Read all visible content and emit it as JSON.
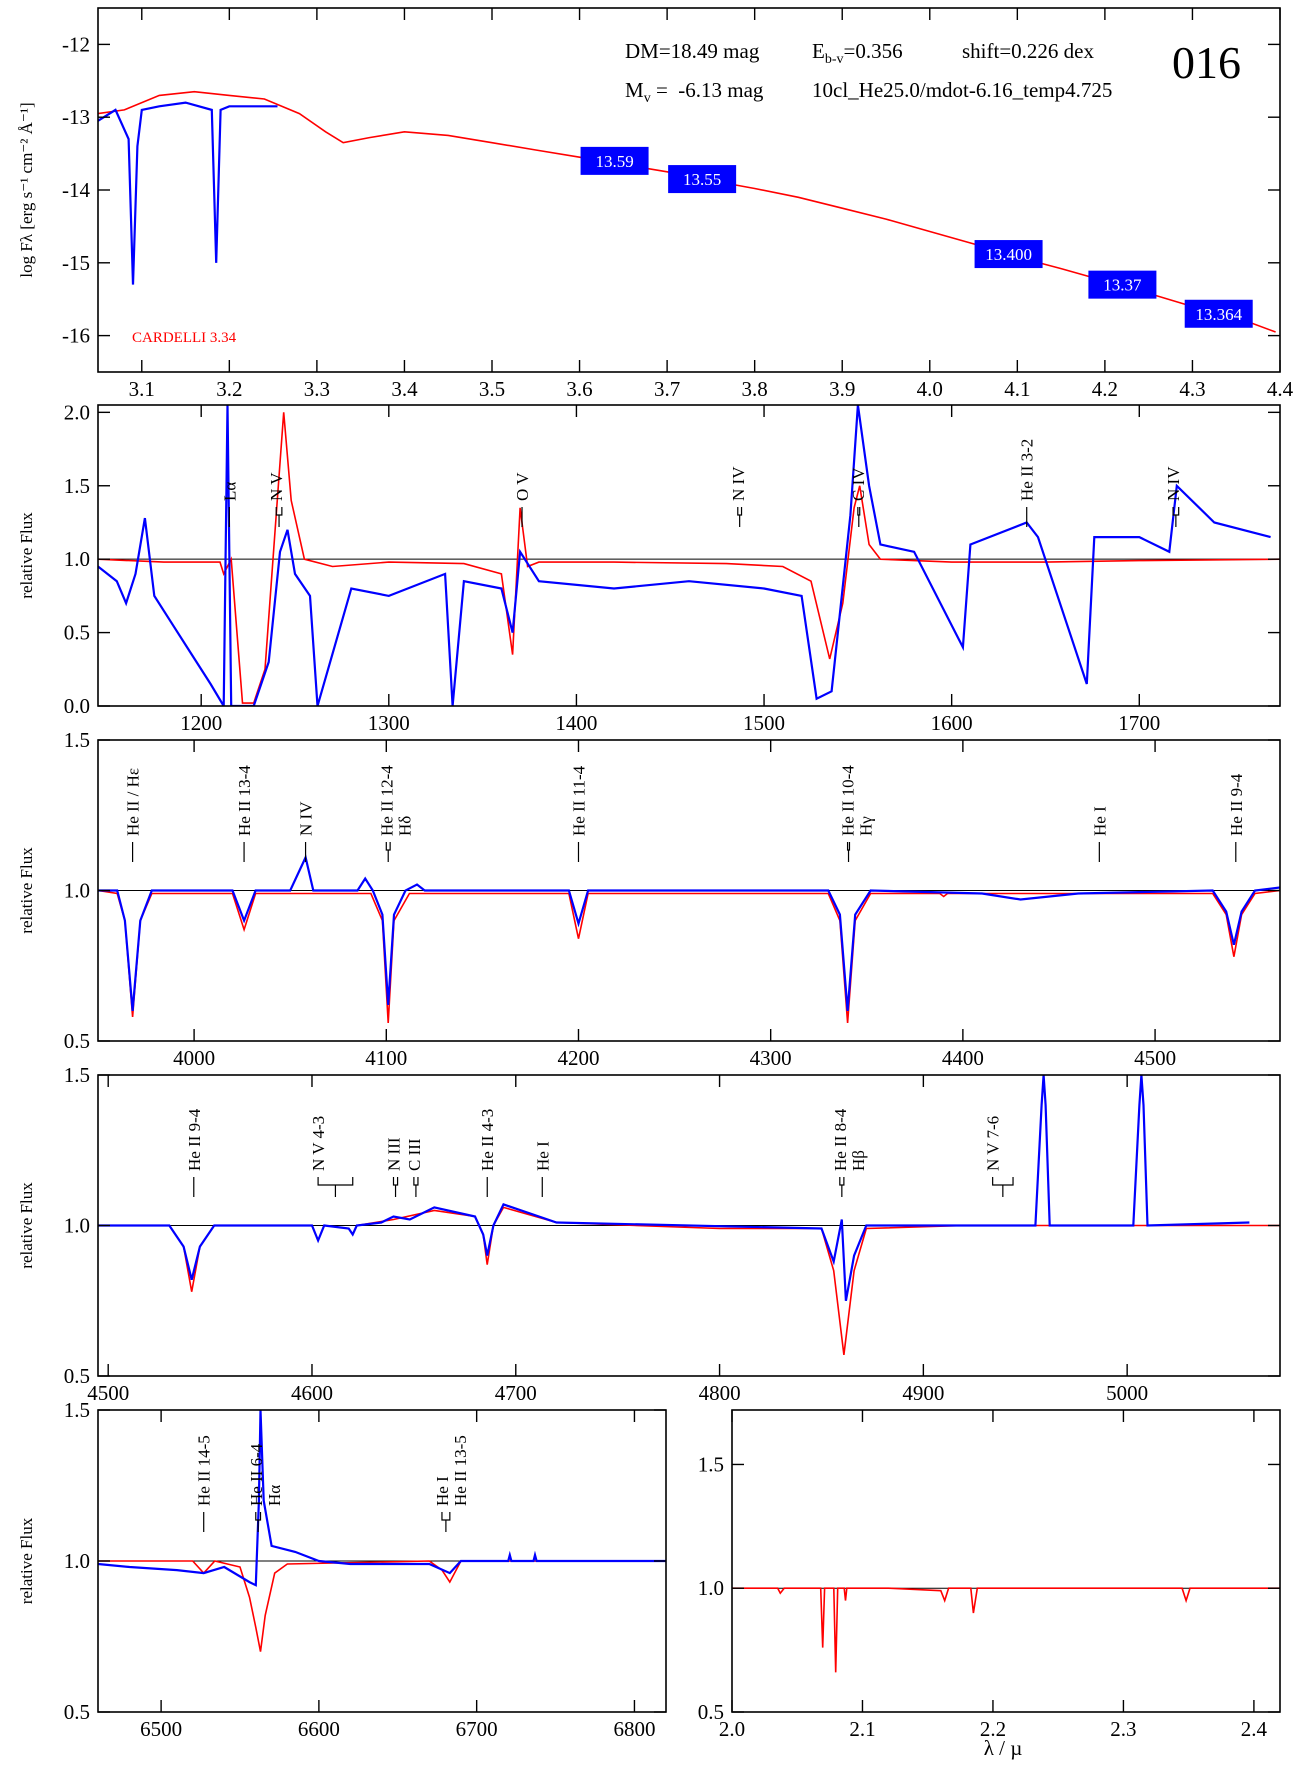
{
  "header": {
    "dm": "DM=18.49 mag",
    "ebv_prefix": "E",
    "ebv_sub": "b-v",
    "ebv_value": "=0.356",
    "shift": "shift=0.226 dex",
    "mv_prefix": "M",
    "mv_sub": "v",
    "mv_value": " =  -6.13 mag",
    "model": "10cl_He25.0/mdot-6.16_temp4.725",
    "star_id": "016"
  },
  "xlabel": "λ / µ",
  "colors": {
    "observation": "#0000ff",
    "model": "#ff0000",
    "photometry_box": "#0000ff",
    "reference_line": "#000000"
  },
  "chart_data": [
    {
      "name": "sed",
      "type": "line",
      "ylabel": "log Fλ [erg s⁻¹ cm⁻² Å⁻¹]",
      "xlim": [
        3.05,
        4.4
      ],
      "ylim": [
        -16.5,
        -11.5
      ],
      "xticks": [
        3.1,
        3.2,
        3.3,
        3.4,
        3.5,
        3.6,
        3.7,
        3.8,
        3.9,
        4.0,
        4.1,
        4.2,
        4.3,
        4.4
      ],
      "xtick_labels": [
        "3.1",
        "3.2",
        "3.3",
        "3.4",
        "3.5",
        "3.6",
        "3.7",
        "3.8",
        "3.9",
        "4.0",
        "4.1",
        "4.2",
        "4.3",
        "4.4"
      ],
      "yticks": [
        -16,
        -15,
        -14,
        -13,
        -12
      ],
      "ytick_labels": [
        "-16",
        "-15",
        "-14",
        "-13",
        "-12"
      ],
      "extinction_label": "CARDELLI 3.34",
      "photometry": [
        {
          "x": 3.64,
          "y": -13.6,
          "label": "13.59"
        },
        {
          "x": 3.74,
          "y": -13.85,
          "label": "13.55"
        },
        {
          "x": 4.09,
          "y": -14.88,
          "label": "13.400"
        },
        {
          "x": 4.22,
          "y": -15.3,
          "label": "13.37"
        },
        {
          "x": 4.33,
          "y": -15.7,
          "label": "13.364"
        }
      ],
      "model": {
        "x": [
          3.05,
          3.08,
          3.12,
          3.16,
          3.2,
          3.24,
          3.28,
          3.31,
          3.33,
          3.36,
          3.4,
          3.45,
          3.5,
          3.55,
          3.6,
          3.65,
          3.7,
          3.75,
          3.8,
          3.85,
          3.9,
          3.95,
          4.0,
          4.05,
          4.1,
          4.15,
          4.2,
          4.25,
          4.3,
          4.35,
          4.395
        ],
        "y": [
          -12.95,
          -12.9,
          -12.7,
          -12.65,
          -12.7,
          -12.75,
          -12.95,
          -13.2,
          -13.35,
          -13.28,
          -13.2,
          -13.25,
          -13.35,
          -13.45,
          -13.55,
          -13.65,
          -13.75,
          -13.87,
          -13.98,
          -14.1,
          -14.25,
          -14.4,
          -14.57,
          -14.74,
          -14.92,
          -15.08,
          -15.25,
          -15.42,
          -15.6,
          -15.75,
          -15.95
        ]
      },
      "observation": {
        "x": [
          3.05,
          3.07,
          3.085,
          3.09,
          3.095,
          3.1,
          3.12,
          3.15,
          3.18,
          3.185,
          3.19,
          3.2,
          3.23,
          3.255
        ],
        "y": [
          -13.05,
          -12.9,
          -13.3,
          -15.3,
          -13.4,
          -12.9,
          -12.85,
          -12.8,
          -12.9,
          -15.0,
          -12.9,
          -12.85,
          -12.85,
          -12.85
        ]
      }
    },
    {
      "name": "uv",
      "type": "line",
      "ylabel": "relative Flux",
      "xlim": [
        1145,
        1775
      ],
      "ylim": [
        0.0,
        2.05
      ],
      "xticks": [
        1200,
        1300,
        1400,
        1500,
        1600,
        1700
      ],
      "xtick_labels": [
        "1200",
        "1300",
        "1400",
        "1500",
        "1600",
        "1700"
      ],
      "yticks": [
        0.0,
        0.5,
        1.0,
        1.5,
        2.0
      ],
      "ytick_labels": [
        "0.0",
        "0.5",
        "1.0",
        "1.5",
        "2.0"
      ],
      "line_ids": [
        {
          "x": 1215,
          "label": "Lα",
          "double": false
        },
        {
          "x": 1240,
          "label": "N V",
          "double": true,
          "x2": 1243
        },
        {
          "x": 1371,
          "label": "O V",
          "double": false
        },
        {
          "x": 1486,
          "label": "N IV",
          "double": true,
          "x2": 1488
        },
        {
          "x": 1550,
          "label": "C IV",
          "double": true,
          "x2": 1551
        },
        {
          "x": 1640,
          "label": "He II 3-2",
          "double": false
        },
        {
          "x": 1718,
          "label": "N IV",
          "double": true,
          "x2": 1721
        }
      ],
      "model": {
        "x": [
          1145,
          1180,
          1210,
          1212,
          1216,
          1222,
          1228,
          1234,
          1240,
          1244,
          1248,
          1255,
          1270,
          1300,
          1340,
          1360,
          1366,
          1370,
          1374,
          1380,
          1420,
          1480,
          1510,
          1525,
          1535,
          1542,
          1548,
          1551,
          1556,
          1562,
          1600,
          1650,
          1700,
          1775
        ],
        "y": [
          1.0,
          0.98,
          0.98,
          0.9,
          1.0,
          0.02,
          0.02,
          0.25,
          1.3,
          2.0,
          1.4,
          1.0,
          0.95,
          0.98,
          0.97,
          0.9,
          0.35,
          1.35,
          0.95,
          0.98,
          0.98,
          0.97,
          0.95,
          0.85,
          0.32,
          0.7,
          1.35,
          1.5,
          1.1,
          1.0,
          0.98,
          0.98,
          0.99,
          1.0
        ]
      },
      "observation": {
        "x": [
          1145,
          1155,
          1160,
          1165,
          1170,
          1175,
          1185,
          1195,
          1205,
          1212,
          1214,
          1216,
          1218,
          1228,
          1236,
          1242,
          1246,
          1250,
          1258,
          1262,
          1280,
          1300,
          1330,
          1334,
          1340,
          1360,
          1366,
          1370,
          1380,
          1420,
          1460,
          1500,
          1520,
          1528,
          1536,
          1546,
          1550,
          1556,
          1562,
          1580,
          1606,
          1610,
          1640,
          1646,
          1672,
          1676,
          1700,
          1716,
          1720,
          1740,
          1770
        ],
        "y": [
          0.95,
          0.85,
          0.7,
          0.9,
          1.28,
          0.75,
          0.55,
          0.35,
          0.15,
          0.0,
          2.05,
          0.0,
          0.0,
          0.0,
          0.3,
          1.05,
          1.2,
          0.9,
          0.75,
          0.0,
          0.8,
          0.75,
          0.9,
          0.0,
          0.85,
          0.8,
          0.5,
          1.05,
          0.85,
          0.8,
          0.85,
          0.8,
          0.75,
          0.05,
          0.1,
          1.3,
          2.05,
          1.5,
          1.1,
          1.05,
          0.4,
          1.1,
          1.25,
          1.15,
          0.15,
          1.15,
          1.15,
          1.05,
          1.5,
          1.25,
          1.15
        ]
      }
    },
    {
      "name": "optical-blue",
      "type": "line",
      "ylabel": "relative Flux",
      "xlim": [
        3950,
        4565
      ],
      "ylim": [
        0.5,
        1.5
      ],
      "xticks": [
        4000,
        4100,
        4200,
        4300,
        4400,
        4500
      ],
      "xtick_labels": [
        "4000",
        "4100",
        "4200",
        "4300",
        "4400",
        "4500"
      ],
      "yticks": [
        0.5,
        1.0,
        1.5
      ],
      "ytick_labels": [
        "0.5",
        "1.0",
        "1.5"
      ],
      "line_ids": [
        {
          "x": 3968,
          "label": "He II / Hε",
          "double": false
        },
        {
          "x": 4026,
          "label": "He II 13-4",
          "double": false
        },
        {
          "x": 4058,
          "label": "N IV",
          "double": false
        },
        {
          "x": 4100,
          "label": "He II 12-4",
          "double": true,
          "x2": 4102,
          "label2": "Hδ"
        },
        {
          "x": 4200,
          "label": "He II 11-4",
          "double": false
        },
        {
          "x": 4340,
          "label": "He II 10-4",
          "double": true,
          "x2": 4341,
          "label2": "Hγ"
        },
        {
          "x": 4471,
          "label": "He I",
          "double": false
        },
        {
          "x": 4542,
          "label": "He II 9-4",
          "double": false
        }
      ],
      "model": {
        "x": [
          3950,
          3960,
          3964,
          3968,
          3972,
          3978,
          4020,
          4026,
          4032,
          4092,
          4098,
          4101,
          4104,
          4112,
          4195,
          4200,
          4205,
          4330,
          4336,
          4340,
          4344,
          4352,
          4388,
          4390,
          4392,
          4530,
          4537,
          4541,
          4545,
          4552,
          4565
        ],
        "y": [
          1.0,
          0.99,
          0.9,
          0.58,
          0.9,
          0.99,
          0.99,
          0.87,
          0.99,
          0.99,
          0.9,
          0.56,
          0.9,
          0.99,
          0.99,
          0.84,
          0.99,
          0.99,
          0.9,
          0.56,
          0.9,
          0.99,
          0.99,
          0.98,
          0.99,
          0.99,
          0.92,
          0.78,
          0.92,
          0.99,
          1.0
        ]
      },
      "observation": {
        "x": [
          3950,
          3960,
          3964,
          3968,
          3972,
          3978,
          4020,
          4026,
          4032,
          4050,
          4058,
          4062,
          4085,
          4089,
          4093,
          4098,
          4101,
          4104,
          4110,
          4116,
          4120,
          4195,
          4200,
          4205,
          4330,
          4336,
          4340,
          4344,
          4352,
          4410,
          4430,
          4460,
          4530,
          4537,
          4541,
          4545,
          4552,
          4565
        ],
        "y": [
          1.0,
          1.0,
          0.9,
          0.6,
          0.9,
          1.0,
          1.0,
          0.9,
          1.0,
          1.0,
          1.11,
          1.0,
          1.0,
          1.04,
          1.0,
          0.92,
          0.62,
          0.92,
          1.0,
          1.02,
          1.0,
          1.0,
          0.89,
          1.0,
          1.0,
          0.92,
          0.6,
          0.92,
          1.0,
          0.99,
          0.97,
          0.99,
          1.0,
          0.93,
          0.82,
          0.93,
          1.0,
          1.01
        ]
      }
    },
    {
      "name": "optical-red",
      "type": "line",
      "ylabel": "relative Flux",
      "xlim": [
        4495,
        5075
      ],
      "ylim": [
        0.5,
        1.5
      ],
      "xticks": [
        4500,
        4600,
        4700,
        4800,
        4900,
        5000
      ],
      "xtick_labels": [
        "4500",
        "4600",
        "4700",
        "4800",
        "4900",
        "5000"
      ],
      "yticks": [
        0.5,
        1.0,
        1.5
      ],
      "ytick_labels": [
        "0.5",
        "1.0",
        "1.5"
      ],
      "line_ids": [
        {
          "x": 4542,
          "label": "He II 9-4",
          "double": false
        },
        {
          "x": 4603,
          "label": "N V 4-3",
          "double": true,
          "x2": 4620
        },
        {
          "x": 4640,
          "label": "N III",
          "double": true,
          "x2": 4642
        },
        {
          "x": 4650,
          "label": "C III",
          "double": true,
          "x2": 4652
        },
        {
          "x": 4686,
          "label": "He II 4-3",
          "double": false
        },
        {
          "x": 4713,
          "label": "He I",
          "double": false
        },
        {
          "x": 4859,
          "label": "He II 8-4",
          "double": true,
          "x2": 4861,
          "label2": "Hβ"
        },
        {
          "x": 4934,
          "label": "N V 7-6",
          "double": true,
          "x2": 4944
        }
      ],
      "model": {
        "x": [
          4495,
          4530,
          4537,
          4541,
          4545,
          4552,
          4600,
          4603,
          4606,
          4618,
          4620,
          4622,
          4640,
          4660,
          4680,
          4684,
          4686,
          4689,
          4694,
          4720,
          4800,
          4850,
          4856,
          4861,
          4866,
          4872,
          4920,
          5075
        ],
        "y": [
          1.0,
          1.0,
          0.93,
          0.78,
          0.93,
          1.0,
          1.0,
          0.95,
          1.0,
          0.99,
          0.97,
          1.0,
          1.02,
          1.05,
          1.03,
          0.97,
          0.87,
          1.0,
          1.06,
          1.01,
          0.99,
          0.99,
          0.85,
          0.57,
          0.85,
          0.99,
          1.0,
          1.0
        ]
      },
      "observation": {
        "x": [
          4495,
          4530,
          4537,
          4541,
          4545,
          4552,
          4600,
          4603,
          4606,
          4618,
          4620,
          4622,
          4634,
          4640,
          4648,
          4660,
          4680,
          4684,
          4686,
          4689,
          4694,
          4720,
          4850,
          4856,
          4860,
          4862,
          4866,
          4872,
          4955,
          4958,
          4959,
          4960,
          4962,
          5003,
          5006,
          5007,
          5008,
          5010,
          5060
        ],
        "y": [
          1.0,
          1.0,
          0.93,
          0.82,
          0.93,
          1.0,
          1.0,
          0.95,
          1.0,
          0.99,
          0.97,
          1.0,
          1.01,
          1.03,
          1.02,
          1.06,
          1.03,
          0.97,
          0.9,
          1.0,
          1.07,
          1.01,
          0.99,
          0.88,
          1.02,
          0.75,
          0.9,
          1.0,
          1.0,
          1.4,
          1.5,
          1.4,
          1.0,
          1.0,
          1.4,
          1.5,
          1.4,
          1.0,
          1.01
        ]
      }
    },
    {
      "name": "halpha",
      "type": "line",
      "ylabel": "relative Flux",
      "xlim": [
        6460,
        6820
      ],
      "ylim": [
        0.5,
        1.5
      ],
      "xticks": [
        6500,
        6600,
        6700,
        6800
      ],
      "xtick_labels": [
        "6500",
        "6600",
        "6700",
        "6800"
      ],
      "yticks": [
        0.5,
        1.0,
        1.5
      ],
      "ytick_labels": [
        "0.5",
        "1.0",
        "1.5"
      ],
      "line_ids": [
        {
          "x": 6527,
          "label": "He II 14-5",
          "double": false
        },
        {
          "x": 6560,
          "label": "He II 6-4",
          "double": true,
          "x2": 6563,
          "label2": "Hα"
        },
        {
          "x": 6678,
          "label": "He I",
          "double": true,
          "x2": 6683,
          "label2": "He II 13-5"
        }
      ],
      "model": {
        "x": [
          6460,
          6520,
          6527,
          6534,
          6550,
          6556,
          6560,
          6563,
          6566,
          6572,
          6580,
          6670,
          6678,
          6683,
          6690,
          6820
        ],
        "y": [
          1.0,
          1.0,
          0.96,
          1.0,
          0.98,
          0.88,
          0.78,
          0.7,
          0.82,
          0.96,
          0.99,
          1.0,
          0.97,
          0.93,
          1.0,
          1.0
        ]
      },
      "observation": {
        "x": [
          6460,
          6480,
          6510,
          6527,
          6540,
          6556,
          6560,
          6562,
          6563,
          6565,
          6570,
          6585,
          6600,
          6620,
          6670,
          6683,
          6690,
          6720,
          6721,
          6722,
          6736,
          6737,
          6738,
          6820
        ],
        "y": [
          0.99,
          0.98,
          0.97,
          0.96,
          0.98,
          0.93,
          0.92,
          1.2,
          1.5,
          1.2,
          1.05,
          1.03,
          1.0,
          0.99,
          0.99,
          0.96,
          1.0,
          1.0,
          1.02,
          1.0,
          1.0,
          1.02,
          1.0,
          1.0
        ]
      }
    },
    {
      "name": "infrared",
      "type": "line",
      "ylabel": "",
      "xlim": [
        2.0,
        2.42
      ],
      "ylim": [
        0.5,
        1.72
      ],
      "xticks": [
        2.0,
        2.1,
        2.2,
        2.3,
        2.4
      ],
      "xtick_labels": [
        "2.0",
        "2.1",
        "2.2",
        "2.3",
        "2.4"
      ],
      "yticks": [
        0.5,
        1.0,
        1.5
      ],
      "ytick_labels": [
        "0.5",
        "1.0",
        "1.5"
      ],
      "line_ids": [],
      "model": {
        "x": [
          2.0,
          2.035,
          2.037,
          2.04,
          2.068,
          2.0695,
          2.071,
          2.078,
          2.0795,
          2.081,
          2.086,
          2.087,
          2.088,
          2.12,
          2.16,
          2.163,
          2.166,
          2.183,
          2.185,
          2.188,
          2.345,
          2.348,
          2.351,
          2.42
        ],
        "y": [
          1.0,
          1.0,
          0.98,
          1.0,
          1.0,
          0.76,
          1.0,
          1.0,
          0.66,
          1.0,
          1.0,
          0.95,
          1.0,
          1.0,
          0.99,
          0.95,
          1.0,
          1.0,
          0.9,
          1.0,
          1.0,
          0.95,
          1.0,
          1.0
        ]
      },
      "observation": {
        "x": [],
        "y": []
      }
    }
  ]
}
